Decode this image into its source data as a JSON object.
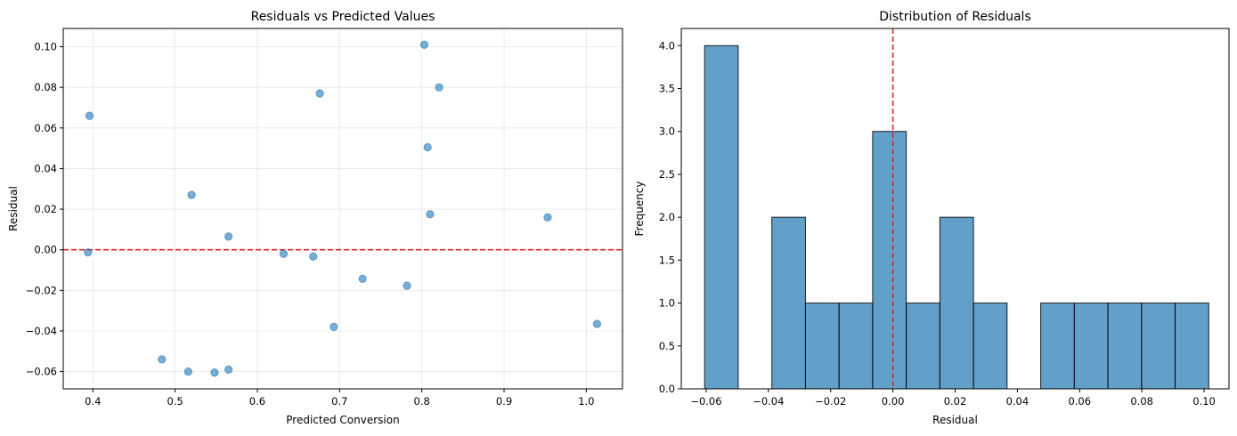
{
  "chart_data": [
    {
      "type": "scatter",
      "title": "Residuals vs Predicted Values",
      "xlabel": "Predicted Conversion",
      "ylabel": "Residual",
      "xlim": [
        0.364,
        1.044
      ],
      "ylim": [
        -0.0685,
        0.109
      ],
      "xticks": [
        0.4,
        0.5,
        0.6,
        0.7,
        0.8,
        0.9,
        1.0
      ],
      "xtick_labels": [
        "0.4",
        "0.5",
        "0.6",
        "0.7",
        "0.8",
        "0.9",
        "1.0"
      ],
      "yticks": [
        -0.06,
        -0.04,
        -0.02,
        0.0,
        0.02,
        0.04,
        0.06,
        0.08,
        0.1
      ],
      "ytick_labels": [
        "−0.06",
        "−0.04",
        "−0.02",
        "0.00",
        "0.02",
        "0.04",
        "0.06",
        "0.08",
        "0.10"
      ],
      "grid": true,
      "reference_line": {
        "axis": "y",
        "value": 0.0,
        "color": "#d62728",
        "style": "dashed"
      },
      "color": "#1f77b4",
      "points": [
        {
          "x": 0.396,
          "y": 0.066
        },
        {
          "x": 0.394,
          "y": -0.0013
        },
        {
          "x": 0.484,
          "y": -0.054
        },
        {
          "x": 0.516,
          "y": -0.06
        },
        {
          "x": 0.52,
          "y": 0.027
        },
        {
          "x": 0.548,
          "y": -0.0605
        },
        {
          "x": 0.565,
          "y": -0.059
        },
        {
          "x": 0.565,
          "y": 0.0065
        },
        {
          "x": 0.632,
          "y": -0.002
        },
        {
          "x": 0.668,
          "y": -0.0033
        },
        {
          "x": 0.676,
          "y": 0.077
        },
        {
          "x": 0.693,
          "y": -0.038
        },
        {
          "x": 0.728,
          "y": -0.0143
        },
        {
          "x": 0.782,
          "y": -0.0177
        },
        {
          "x": 0.803,
          "y": 0.101
        },
        {
          "x": 0.807,
          "y": 0.0505
        },
        {
          "x": 0.81,
          "y": 0.0175
        },
        {
          "x": 0.821,
          "y": 0.08
        },
        {
          "x": 0.953,
          "y": 0.016
        },
        {
          "x": 1.013,
          "y": -0.0365
        }
      ]
    },
    {
      "type": "bar",
      "subtype": "histogram",
      "title": "Distribution of Residuals",
      "xlabel": "Residual",
      "ylabel": "Frequency",
      "xlim": [
        -0.068,
        0.108
      ],
      "ylim": [
        0,
        4.2
      ],
      "xticks": [
        -0.06,
        -0.04,
        -0.02,
        0.0,
        0.02,
        0.04,
        0.06,
        0.08,
        0.1
      ],
      "xtick_labels": [
        "−0.06",
        "−0.04",
        "−0.02",
        "0.00",
        "0.02",
        "0.04",
        "0.06",
        "0.08",
        "0.10"
      ],
      "yticks": [
        0,
        0.5,
        1.0,
        1.5,
        2.0,
        2.5,
        3.0,
        3.5,
        4.0
      ],
      "ytick_labels": [
        "0.0",
        "0.5",
        "1.0",
        "1.5",
        "2.0",
        "2.5",
        "3.0",
        "3.5",
        "4.0"
      ],
      "grid": false,
      "reference_line": {
        "axis": "x",
        "value": 0.0,
        "color": "#d62728",
        "style": "dashed"
      },
      "color": "#1f77b4",
      "bin_edges": [
        -0.0605,
        -0.0497,
        -0.0389,
        -0.0281,
        -0.0173,
        -0.0065,
        0.0043,
        0.0151,
        0.0259,
        0.0367,
        0.0475,
        0.0583,
        0.0691,
        0.0799,
        0.0907,
        0.1015
      ],
      "counts": [
        4,
        0,
        2,
        1,
        1,
        3,
        1,
        2,
        1,
        0,
        1,
        1,
        1,
        1,
        1
      ]
    }
  ]
}
